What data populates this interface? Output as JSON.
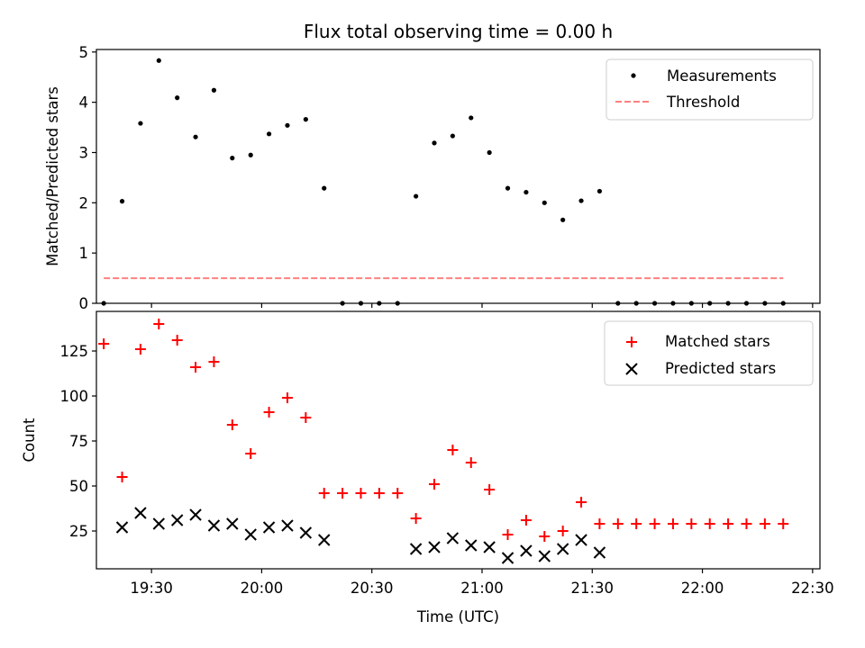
{
  "chart_data": [
    {
      "type": "scatter",
      "title": "Flux total observing time = 0.00 h",
      "xlabel": "",
      "ylabel": "Matched/Predicted stars",
      "xlim": [
        "19:15",
        "22:32"
      ],
      "ylim": [
        0,
        5.05
      ],
      "yticks": [
        0,
        1,
        2,
        3,
        4,
        5
      ],
      "ytick_labels": [
        "0",
        "1",
        "2",
        "3",
        "4",
        "5"
      ],
      "legend_position": "upper right",
      "grid": false,
      "series": [
        {
          "name": "Measurements",
          "marker": "dot",
          "color": "#000000",
          "x": [
            "19:17",
            "19:22",
            "19:27",
            "19:32",
            "19:37",
            "19:42",
            "19:47",
            "19:52",
            "19:57",
            "20:02",
            "20:07",
            "20:12",
            "20:17",
            "20:22",
            "20:27",
            "20:32",
            "20:37",
            "20:42",
            "20:47",
            "20:52",
            "20:57",
            "21:02",
            "21:07",
            "21:12",
            "21:17",
            "21:22",
            "21:27",
            "21:32",
            "21:37",
            "21:42",
            "21:47",
            "21:52",
            "21:57",
            "22:02",
            "22:07",
            "22:12",
            "22:17",
            "22:22"
          ],
          "y": [
            0,
            2.03,
            3.58,
            4.83,
            4.09,
            3.31,
            4.24,
            2.89,
            2.95,
            3.37,
            3.54,
            3.66,
            2.29,
            0,
            0,
            0,
            0,
            2.13,
            3.19,
            3.33,
            3.69,
            3.0,
            2.29,
            2.21,
            2.0,
            1.66,
            2.04,
            2.23,
            0,
            0,
            0,
            0,
            0,
            0,
            0,
            0,
            0,
            0
          ]
        },
        {
          "name": "Threshold",
          "line_style": "dashed",
          "color": "#ff8080",
          "x": [
            "19:17",
            "22:22"
          ],
          "y": [
            0.5,
            0.5
          ]
        }
      ]
    },
    {
      "type": "scatter",
      "title": "",
      "xlabel": "Time (UTC)",
      "ylabel": "Count",
      "xlim": [
        "19:15",
        "22:32"
      ],
      "ylim": [
        4,
        147
      ],
      "yticks": [
        25,
        50,
        75,
        100,
        125
      ],
      "ytick_labels": [
        "25",
        "50",
        "75",
        "100",
        "125"
      ],
      "xticks": [
        "19:30",
        "20:00",
        "20:30",
        "21:00",
        "21:30",
        "22:00",
        "22:30"
      ],
      "xtick_labels": [
        "19:30",
        "20:00",
        "20:30",
        "21:00",
        "21:30",
        "22:00",
        "22:30"
      ],
      "legend_position": "upper right",
      "grid": false,
      "series": [
        {
          "name": "Matched stars",
          "marker": "plus",
          "color": "#ff0000",
          "x": [
            "19:17",
            "19:22",
            "19:27",
            "19:32",
            "19:37",
            "19:42",
            "19:47",
            "19:52",
            "19:57",
            "20:02",
            "20:07",
            "20:12",
            "20:17",
            "20:22",
            "20:27",
            "20:32",
            "20:37",
            "20:42",
            "20:47",
            "20:52",
            "20:57",
            "21:02",
            "21:07",
            "21:12",
            "21:17",
            "21:22",
            "21:27",
            "21:32",
            "21:37",
            "21:42",
            "21:47",
            "21:52",
            "21:57",
            "22:02",
            "22:07",
            "22:12",
            "22:17",
            "22:22"
          ],
          "y": [
            129,
            55,
            126,
            140,
            131,
            116,
            119,
            84,
            68,
            91,
            99,
            88,
            46,
            46,
            46,
            46,
            46,
            32,
            51,
            70,
            63,
            48,
            23,
            31,
            22,
            25,
            41,
            29,
            29,
            29,
            29,
            29,
            29,
            29,
            29,
            29,
            29,
            29
          ]
        },
        {
          "name": "Predicted stars",
          "marker": "x",
          "color": "#000000",
          "x": [
            "19:22",
            "19:27",
            "19:32",
            "19:37",
            "19:42",
            "19:47",
            "19:52",
            "19:57",
            "20:02",
            "20:07",
            "20:12",
            "20:17",
            "20:42",
            "20:47",
            "20:52",
            "20:57",
            "21:02",
            "21:07",
            "21:12",
            "21:17",
            "21:22",
            "21:27",
            "21:32"
          ],
          "y": [
            27,
            35,
            29,
            31,
            34,
            28,
            29,
            23,
            27,
            28,
            24,
            20,
            15,
            16,
            21,
            17,
            16,
            10,
            14,
            11,
            15,
            20,
            13
          ]
        }
      ]
    }
  ]
}
